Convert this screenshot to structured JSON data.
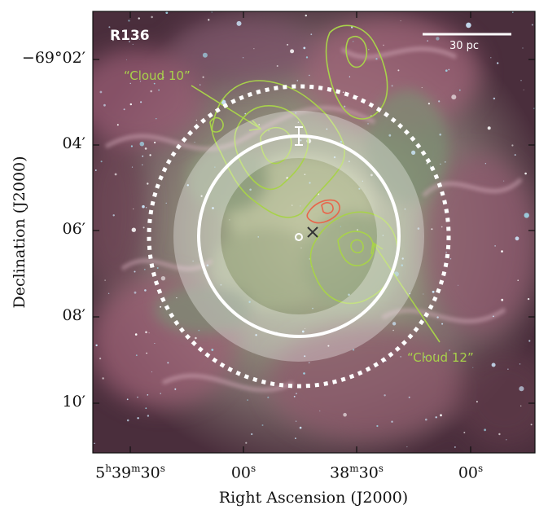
{
  "image": {
    "target_label": "R136",
    "scale_bar_label": "30 pc",
    "annotations": [
      "“Cloud 10”",
      "“Cloud 12”"
    ]
  },
  "axes": {
    "x_title": "Right Ascension (J2000)",
    "y_title": "Declination (J2000)",
    "x_ticks": [
      "5h39m30s",
      "00s",
      "38m30s",
      "00s"
    ],
    "y_ticks": [
      "−69°02′",
      "04′",
      "06′",
      "08′",
      "10′"
    ]
  },
  "colors": {
    "contour_green": "#a8d24a",
    "contour_red": "#e8654a",
    "nebula_pink": "#b06b7f",
    "nebula_green": "#7a9a6a",
    "circle_white": "#ffffff"
  }
}
